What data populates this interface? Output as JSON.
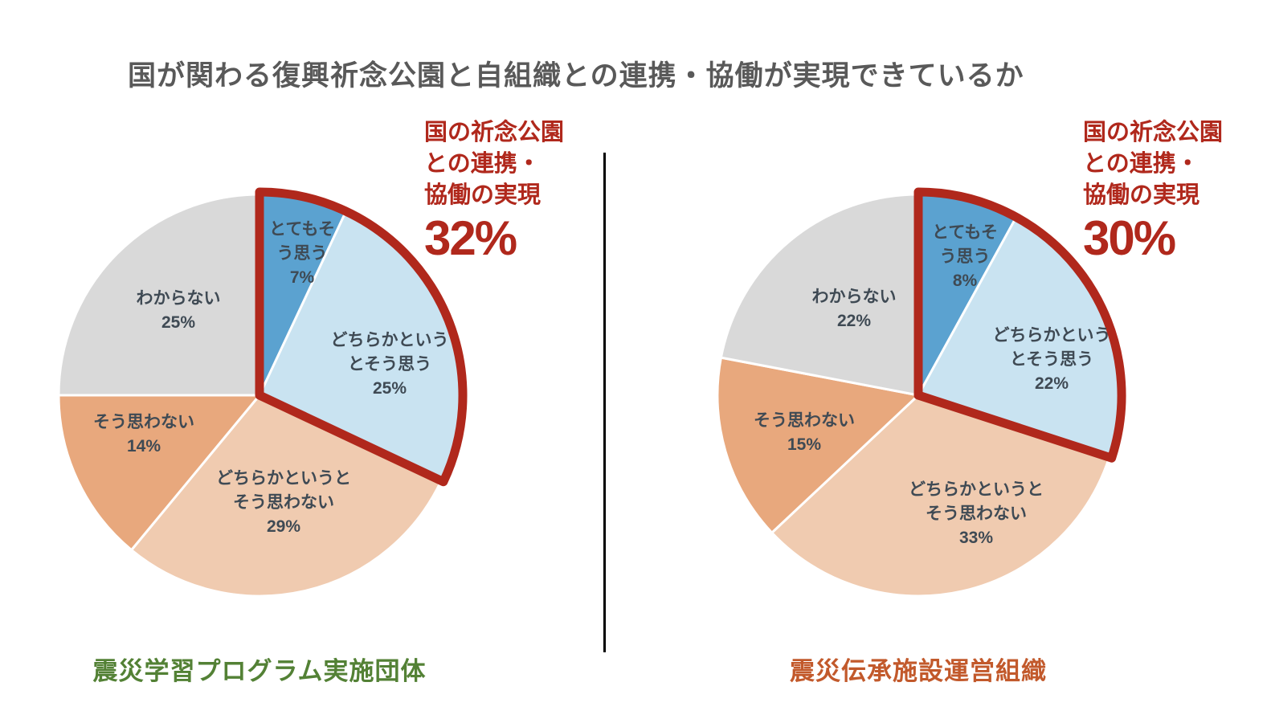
{
  "title": "国が関わる復興祈念公園と自組織との連携・協働が実現できているか",
  "colors": {
    "background": "#FFFFFF",
    "title_text": "#595959",
    "slice_label_text": "#3F4A54",
    "highlight_red": "#B0281C",
    "divider": "#000000"
  },
  "chart_data": [
    {
      "type": "pie",
      "title": "震災学習プログラム実施団体",
      "title_color": "#538135",
      "categories": [
        "とてもそう思う",
        "どちらかというとそう思う",
        "どちらかというとそう思わない",
        "そう思わない",
        "わからない"
      ],
      "values": [
        7,
        25,
        29,
        14,
        25
      ],
      "unit": "%",
      "slices": [
        {
          "label_lines": [
            "とてもそ",
            "う思う"
          ],
          "pct": "7%",
          "value": 7,
          "color": "#5BA2D0"
        },
        {
          "label_lines": [
            "どちらかという",
            "とそう思う"
          ],
          "pct": "25%",
          "value": 25,
          "color": "#C9E3F1"
        },
        {
          "label_lines": [
            "どちらかというと",
            "そう思わない"
          ],
          "pct": "29%",
          "value": 29,
          "color": "#F0CBB0"
        },
        {
          "label_lines": [
            "そう思わない"
          ],
          "pct": "14%",
          "value": 14,
          "color": "#E8A87D"
        },
        {
          "label_lines": [
            "わからない"
          ],
          "pct": "25%",
          "value": 25,
          "color": "#D9D9D9"
        }
      ],
      "highlight": {
        "label": "国の祈念公園との連携・協働の実現",
        "label_lines": [
          "国の祈念公園",
          "との連携・",
          "協働の実現"
        ],
        "value": 32,
        "value_label": "32%",
        "covers": [
          "とてもそう思う",
          "どちらかというとそう思う"
        ],
        "color": "#B0281C"
      }
    },
    {
      "type": "pie",
      "title": "震災伝承施設運営組織",
      "title_color": "#C2592B",
      "categories": [
        "とてもそう思う",
        "どちらかというとそう思う",
        "どちらかというとそう思わない",
        "そう思わない",
        "わからない"
      ],
      "values": [
        8,
        22,
        33,
        15,
        22
      ],
      "unit": "%",
      "slices": [
        {
          "label_lines": [
            "とてもそ",
            "う思う"
          ],
          "pct": "8%",
          "value": 8,
          "color": "#5BA2D0"
        },
        {
          "label_lines": [
            "どちらかという",
            "とそう思う"
          ],
          "pct": "22%",
          "value": 22,
          "color": "#C9E3F1"
        },
        {
          "label_lines": [
            "どちらかというと",
            "そう思わない"
          ],
          "pct": "33%",
          "value": 33,
          "color": "#F0CBB0"
        },
        {
          "label_lines": [
            "そう思わない"
          ],
          "pct": "15%",
          "value": 15,
          "color": "#E8A87D"
        },
        {
          "label_lines": [
            "わからない"
          ],
          "pct": "22%",
          "value": 22,
          "color": "#D9D9D9"
        }
      ],
      "highlight": {
        "label": "国の祈念公園との連携・協働の実現",
        "label_lines": [
          "国の祈念公園",
          "との連携・",
          "協働の実現"
        ],
        "value": 30,
        "value_label": "30%",
        "covers": [
          "とてもそう思う",
          "どちらかというとそう思う"
        ],
        "color": "#B0281C"
      }
    }
  ]
}
